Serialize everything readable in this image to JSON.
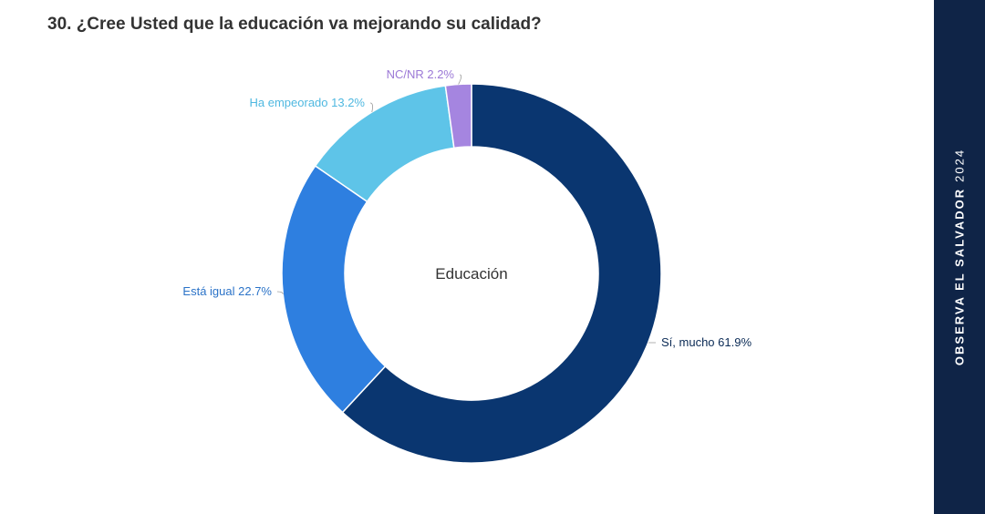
{
  "title": "30. ¿Cree Usted que la educación va mejorando su calidad?",
  "sidebar": {
    "brand": "OBSERVA EL SALVADOR",
    "year": "2024"
  },
  "chart_data": {
    "type": "pie",
    "center_label": "Educación",
    "slices": [
      {
        "label": "Sí, mucho 61.9%",
        "value": 61.9,
        "color": "#0a3670"
      },
      {
        "label": "Está igual 22.7%",
        "value": 22.7,
        "color": "#2e7fe0"
      },
      {
        "label": "Ha empeorado 13.2%",
        "value": 13.2,
        "color": "#5ec4e8"
      },
      {
        "label": "NC/NR 2.2%",
        "value": 2.2,
        "color": "#a585e0"
      }
    ],
    "label_colors": [
      "#0a2a55",
      "#2b73c8",
      "#4fb8e0",
      "#9b78d6"
    ]
  }
}
